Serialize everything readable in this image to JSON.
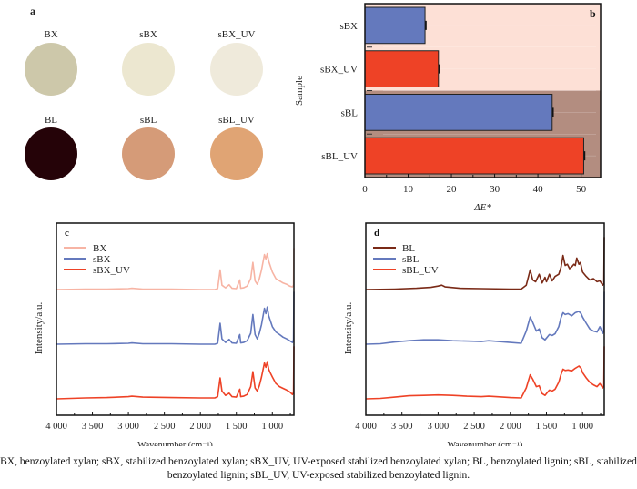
{
  "panel_a": {
    "letter": "a",
    "samples": [
      {
        "label": "BX",
        "color": "#cdc8aa"
      },
      {
        "label": "sBX",
        "color": "#ece7d0"
      },
      {
        "label": "sBX_UV",
        "color": "#efeadb"
      },
      {
        "label": "BL",
        "color": "#250308"
      },
      {
        "label": "sBL",
        "color": "#d59b78"
      },
      {
        "label": "sBL_UV",
        "color": "#e0a474"
      }
    ]
  },
  "chart_data": [
    {
      "panel": "b",
      "type": "bar",
      "orientation": "horizontal",
      "title": "",
      "letter": "b",
      "categories": [
        "sBX",
        "sBX_UV",
        "sBL",
        "sBL_UV"
      ],
      "values": [
        13.9,
        17.0,
        43.3,
        50.6
      ],
      "bar_colors": [
        "#6479bd",
        "#ee4226",
        "#6479bd",
        "#ee4226"
      ],
      "background_groups": [
        {
          "categories": [
            "sBX",
            "sBX_UV"
          ],
          "color": "#fde0d6"
        },
        {
          "categories": [
            "sBL",
            "sBL_UV"
          ],
          "color": "#b38d80"
        }
      ],
      "xlabel": "ΔE*",
      "ylabel": "Sample",
      "xlim": [
        0,
        54.5
      ],
      "xticks": [
        0,
        10,
        20,
        30,
        40,
        50
      ],
      "error_bars": true
    },
    {
      "panel": "c",
      "type": "line",
      "letter": "c",
      "xlabel": "Wavenumber (cm⁻¹)",
      "ylabel": "Intensity/a.u.",
      "xlim": [
        4000,
        700
      ],
      "xticks": [
        4000,
        3500,
        3000,
        2500,
        2000,
        1500,
        1000
      ],
      "xtick_labels": [
        "4 000",
        "3 500",
        "3 000",
        "2 500",
        "2 000",
        "1 500",
        "1 000"
      ],
      "legend": "top-left",
      "series": [
        {
          "name": "BX",
          "color": "#f7b4a4",
          "offset": 2,
          "x": [
            4000,
            3600,
            3300,
            3000,
            2950,
            2800,
            2400,
            2000,
            1800,
            1760,
            1725,
            1700,
            1650,
            1600,
            1560,
            1500,
            1452,
            1440,
            1400,
            1350,
            1300,
            1270,
            1240,
            1210,
            1180,
            1150,
            1110,
            1090,
            1070,
            1050,
            1030,
            1000,
            950,
            900,
            850,
            800,
            760,
            720,
            705,
            700
          ],
          "y": [
            0.0,
            0.01,
            0.01,
            0.02,
            0.03,
            0.01,
            0.01,
            0.0,
            0.0,
            0.02,
            0.45,
            0.1,
            0.04,
            0.11,
            0.03,
            0.02,
            0.22,
            0.03,
            0.04,
            0.08,
            0.25,
            0.62,
            0.2,
            0.12,
            0.25,
            0.45,
            0.8,
            0.7,
            0.82,
            0.65,
            0.55,
            0.4,
            0.25,
            0.2,
            0.15,
            0.12,
            0.08,
            0.06,
            0.1,
            0.95
          ]
        },
        {
          "name": "sBX",
          "color": "#6479bd",
          "offset": 1,
          "x": [
            4000,
            3600,
            3300,
            3000,
            2950,
            2800,
            2400,
            2000,
            1800,
            1760,
            1725,
            1700,
            1650,
            1600,
            1560,
            1500,
            1452,
            1440,
            1400,
            1350,
            1300,
            1270,
            1240,
            1210,
            1180,
            1150,
            1110,
            1090,
            1070,
            1050,
            1030,
            1000,
            950,
            900,
            850,
            800,
            760,
            720,
            705,
            700
          ],
          "y": [
            0.0,
            0.01,
            0.01,
            0.02,
            0.03,
            0.01,
            0.01,
            0.0,
            0.0,
            0.02,
            0.48,
            0.12,
            0.04,
            0.11,
            0.03,
            0.02,
            0.22,
            0.03,
            0.04,
            0.08,
            0.25,
            0.68,
            0.22,
            0.12,
            0.25,
            0.45,
            0.82,
            0.7,
            0.85,
            0.65,
            0.55,
            0.4,
            0.28,
            0.22,
            0.16,
            0.12,
            0.08,
            0.04,
            0.1,
            1.2
          ]
        },
        {
          "name": "sBX_UV",
          "color": "#ee4226",
          "offset": 0,
          "x": [
            4000,
            3600,
            3300,
            3000,
            2950,
            2800,
            2400,
            2000,
            1800,
            1760,
            1725,
            1700,
            1650,
            1600,
            1560,
            1500,
            1452,
            1440,
            1400,
            1350,
            1300,
            1270,
            1240,
            1210,
            1180,
            1150,
            1110,
            1090,
            1070,
            1050,
            1030,
            1000,
            950,
            900,
            850,
            800,
            760,
            720,
            705,
            700
          ],
          "y": [
            0.0,
            0.02,
            0.03,
            0.05,
            0.06,
            0.04,
            0.03,
            0.02,
            0.02,
            0.05,
            0.48,
            0.18,
            0.08,
            0.13,
            0.05,
            0.04,
            0.22,
            0.05,
            0.06,
            0.1,
            0.28,
            0.62,
            0.25,
            0.18,
            0.3,
            0.5,
            0.82,
            0.72,
            0.85,
            0.68,
            0.6,
            0.5,
            0.35,
            0.28,
            0.24,
            0.2,
            0.16,
            0.1,
            0.15,
            1.2
          ]
        }
      ]
    },
    {
      "panel": "d",
      "type": "line",
      "letter": "d",
      "xlabel": "Wavenumber (cm⁻¹)",
      "ylabel": "Intensity/a.u.",
      "xlim": [
        4000,
        700
      ],
      "xticks": [
        4000,
        3500,
        3000,
        2500,
        2000,
        1500,
        1000
      ],
      "xtick_labels": [
        "4 000",
        "3 500",
        "3 000",
        "2 500",
        "2 000",
        "1 500",
        "1 000"
      ],
      "legend": "top-left",
      "series": [
        {
          "name": "BL",
          "color": "#7a2a17",
          "offset": 2,
          "x": [
            4000,
            3600,
            3300,
            3100,
            3000,
            2950,
            2900,
            2700,
            2400,
            2000,
            1850,
            1780,
            1725,
            1690,
            1650,
            1600,
            1560,
            1520,
            1500,
            1460,
            1420,
            1380,
            1330,
            1300,
            1270,
            1240,
            1210,
            1180,
            1150,
            1120,
            1100,
            1080,
            1050,
            1030,
            1000,
            950,
            900,
            850,
            800,
            760,
            720,
            705,
            700
          ],
          "y": [
            0.0,
            0.01,
            0.03,
            0.05,
            0.08,
            0.1,
            0.06,
            0.03,
            0.02,
            0.01,
            0.01,
            0.1,
            0.45,
            0.22,
            0.18,
            0.35,
            0.15,
            0.28,
            0.18,
            0.35,
            0.2,
            0.3,
            0.35,
            0.5,
            0.78,
            0.55,
            0.58,
            0.48,
            0.52,
            0.58,
            0.55,
            0.72,
            0.58,
            0.62,
            0.4,
            0.3,
            0.22,
            0.25,
            0.18,
            0.2,
            0.1,
            0.15,
            1.2
          ]
        },
        {
          "name": "sBL",
          "color": "#6479bd",
          "offset": 1,
          "x": [
            4000,
            3800,
            3600,
            3400,
            3200,
            3000,
            2800,
            2600,
            2400,
            2300,
            2000,
            1850,
            1780,
            1725,
            1690,
            1640,
            1600,
            1560,
            1520,
            1500,
            1460,
            1420,
            1380,
            1330,
            1300,
            1270,
            1240,
            1200,
            1150,
            1100,
            1050,
            1020,
            1000,
            950,
            900,
            850,
            800,
            760,
            720,
            705,
            700
          ],
          "y": [
            0.0,
            0.01,
            0.05,
            0.08,
            0.1,
            0.1,
            0.08,
            0.07,
            0.06,
            0.08,
            0.04,
            0.02,
            0.3,
            0.62,
            0.5,
            0.3,
            0.35,
            0.15,
            0.1,
            0.14,
            0.22,
            0.2,
            0.24,
            0.4,
            0.6,
            0.72,
            0.68,
            0.7,
            0.65,
            0.72,
            0.75,
            0.7,
            0.62,
            0.48,
            0.35,
            0.3,
            0.28,
            0.4,
            0.25,
            0.35,
            1.2
          ]
        },
        {
          "name": "sBL_UV",
          "color": "#ee4226",
          "offset": 0,
          "x": [
            4000,
            3800,
            3600,
            3400,
            3200,
            3000,
            2800,
            2600,
            2400,
            2300,
            2000,
            1850,
            1780,
            1725,
            1690,
            1640,
            1600,
            1560,
            1520,
            1500,
            1460,
            1420,
            1380,
            1330,
            1300,
            1270,
            1240,
            1200,
            1150,
            1100,
            1050,
            1020,
            1000,
            950,
            900,
            850,
            800,
            760,
            720,
            705,
            700
          ],
          "y": [
            0.0,
            0.01,
            0.04,
            0.07,
            0.08,
            0.09,
            0.08,
            0.06,
            0.05,
            0.06,
            0.03,
            0.02,
            0.25,
            0.55,
            0.45,
            0.28,
            0.3,
            0.12,
            0.08,
            0.12,
            0.2,
            0.18,
            0.22,
            0.38,
            0.55,
            0.68,
            0.65,
            0.66,
            0.64,
            0.7,
            0.75,
            0.7,
            0.6,
            0.48,
            0.38,
            0.32,
            0.28,
            0.35,
            0.25,
            0.32,
            1.2
          ]
        }
      ]
    }
  ],
  "caption": "BX, benzoylated xylan; sBX, stabilized benzoylated xylan; sBX_UV, UV-exposed stabilized benzoylated xylan; BL, benzoylated lignin; sBL, stabilized benzoylated lignin; sBL_UV, UV-exposed stabilized benzoylated lignin."
}
